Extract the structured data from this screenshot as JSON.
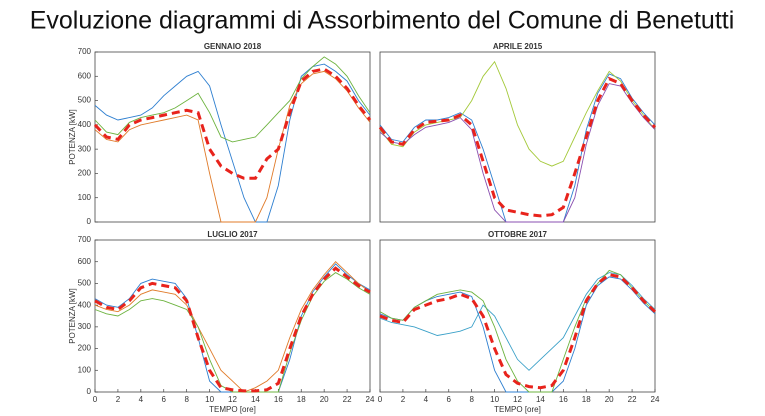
{
  "title": "Evoluzione diagrammi di Assorbimento del Comune di Benetutti",
  "chart_data": [
    {
      "type": "line",
      "title": "GENNAIO 2018",
      "ylabel": "POTENZA [kW]",
      "x": [
        0,
        1,
        2,
        3,
        4,
        5,
        6,
        7,
        8,
        9,
        10,
        11,
        12,
        13,
        14,
        15,
        16,
        17,
        18,
        19,
        20,
        21,
        22,
        23,
        24
      ],
      "xlim": [
        0,
        24
      ],
      "ylim": [
        0,
        700
      ],
      "yticks": [
        0,
        100,
        200,
        300,
        400,
        500,
        600,
        700
      ],
      "series": [
        {
          "color": "#2e7fd0",
          "values": [
            480,
            440,
            420,
            430,
            440,
            470,
            520,
            560,
            600,
            620,
            560,
            400,
            250,
            100,
            0,
            0,
            150,
            420,
            600,
            640,
            650,
            620,
            580,
            500,
            440
          ]
        },
        {
          "color": "#e07b2a",
          "values": [
            380,
            340,
            330,
            380,
            400,
            410,
            420,
            430,
            440,
            420,
            200,
            0,
            0,
            0,
            0,
            100,
            300,
            480,
            570,
            610,
            620,
            590,
            540,
            470,
            410
          ]
        },
        {
          "color": "#6db33f",
          "values": [
            420,
            370,
            360,
            410,
            430,
            440,
            450,
            470,
            500,
            530,
            450,
            350,
            330,
            340,
            350,
            400,
            450,
            500,
            590,
            640,
            680,
            650,
            600,
            520,
            450
          ]
        },
        {
          "color": "#e8231c",
          "dashed": true,
          "values": [
            400,
            350,
            340,
            400,
            420,
            430,
            440,
            450,
            460,
            450,
            300,
            230,
            200,
            180,
            180,
            260,
            300,
            450,
            580,
            620,
            630,
            600,
            550,
            480,
            420
          ]
        }
      ]
    },
    {
      "type": "line",
      "title": "APRILE 2015",
      "x": [
        0,
        1,
        2,
        3,
        4,
        5,
        6,
        7,
        8,
        9,
        10,
        11,
        12,
        13,
        14,
        15,
        16,
        17,
        18,
        19,
        20,
        21,
        22,
        23,
        24
      ],
      "xlim": [
        0,
        24
      ],
      "ylim": [
        0,
        700
      ],
      "series": [
        {
          "color": "#2e7fd0",
          "values": [
            400,
            340,
            330,
            390,
            420,
            420,
            430,
            450,
            420,
            300,
            150,
            0,
            0,
            0,
            0,
            0,
            0,
            150,
            380,
            530,
            610,
            590,
            510,
            450,
            400
          ]
        },
        {
          "color": "#a4c93a",
          "values": [
            380,
            320,
            310,
            370,
            400,
            410,
            420,
            430,
            500,
            600,
            660,
            550,
            400,
            300,
            250,
            230,
            250,
            350,
            450,
            540,
            620,
            580,
            500,
            440,
            380
          ]
        },
        {
          "color": "#8a4fb0",
          "values": [
            370,
            330,
            320,
            360,
            390,
            400,
            410,
            430,
            380,
            200,
            50,
            0,
            0,
            0,
            0,
            0,
            0,
            100,
            320,
            480,
            570,
            560,
            490,
            430,
            380
          ]
        },
        {
          "color": "#e8231c",
          "dashed": true,
          "values": [
            390,
            330,
            320,
            380,
            410,
            415,
            420,
            440,
            400,
            250,
            100,
            50,
            40,
            30,
            25,
            30,
            60,
            200,
            350,
            500,
            590,
            570,
            500,
            440,
            390
          ]
        }
      ]
    },
    {
      "type": "line",
      "title": "LUGLIO 2017",
      "ylabel": "POTENZA [kW]",
      "xlabel": "TEMPO [ore]",
      "x": [
        0,
        1,
        2,
        3,
        4,
        5,
        6,
        7,
        8,
        9,
        10,
        11,
        12,
        13,
        14,
        15,
        16,
        17,
        18,
        19,
        20,
        21,
        22,
        23,
        24
      ],
      "xlim": [
        0,
        24
      ],
      "xticks": [
        0,
        2,
        4,
        6,
        8,
        10,
        12,
        14,
        16,
        18,
        20,
        22,
        24
      ],
      "ylim": [
        0,
        700
      ],
      "yticks": [
        0,
        100,
        200,
        300,
        400,
        500,
        600,
        700
      ],
      "series": [
        {
          "color": "#2e7fd0",
          "values": [
            430,
            400,
            390,
            430,
            500,
            520,
            510,
            500,
            430,
            250,
            50,
            0,
            0,
            0,
            0,
            0,
            0,
            150,
            350,
            460,
            530,
            590,
            540,
            500,
            470
          ]
        },
        {
          "color": "#e07b2a",
          "values": [
            400,
            380,
            370,
            400,
            450,
            470,
            460,
            450,
            400,
            300,
            200,
            100,
            50,
            0,
            20,
            50,
            100,
            250,
            380,
            470,
            540,
            600,
            550,
            500,
            460
          ]
        },
        {
          "color": "#6db33f",
          "values": [
            380,
            360,
            350,
            380,
            420,
            430,
            420,
            400,
            380,
            300,
            150,
            30,
            0,
            0,
            0,
            0,
            0,
            180,
            330,
            440,
            510,
            550,
            520,
            480,
            450
          ]
        },
        {
          "color": "#e8231c",
          "dashed": true,
          "values": [
            420,
            390,
            380,
            420,
            480,
            500,
            490,
            480,
            420,
            250,
            100,
            20,
            10,
            5,
            5,
            10,
            40,
            200,
            350,
            450,
            520,
            570,
            530,
            490,
            460
          ]
        }
      ]
    },
    {
      "type": "line",
      "title": "OTTOBRE 2017",
      "xlabel": "TEMPO [ore]",
      "x": [
        0,
        1,
        2,
        3,
        4,
        5,
        6,
        7,
        8,
        9,
        10,
        11,
        12,
        13,
        14,
        15,
        16,
        17,
        18,
        19,
        20,
        21,
        22,
        23,
        24
      ],
      "xlim": [
        0,
        24
      ],
      "xticks": [
        0,
        2,
        4,
        6,
        8,
        10,
        12,
        14,
        16,
        18,
        20,
        22,
        24
      ],
      "ylim": [
        0,
        700
      ],
      "series": [
        {
          "color": "#2e7fd0",
          "values": [
            360,
            340,
            330,
            390,
            420,
            440,
            450,
            460,
            440,
            300,
            100,
            0,
            0,
            0,
            0,
            0,
            50,
            200,
            400,
            490,
            530,
            520,
            470,
            410,
            360
          ]
        },
        {
          "color": "#3aa0c8",
          "values": [
            340,
            320,
            310,
            300,
            280,
            260,
            270,
            280,
            300,
            400,
            350,
            250,
            150,
            100,
            150,
            200,
            250,
            350,
            450,
            520,
            550,
            540,
            490,
            430,
            380
          ]
        },
        {
          "color": "#6db33f",
          "values": [
            370,
            340,
            330,
            390,
            420,
            450,
            460,
            470,
            460,
            420,
            300,
            150,
            50,
            0,
            0,
            0,
            150,
            300,
            430,
            500,
            560,
            540,
            480,
            420,
            370
          ]
        },
        {
          "color": "#e8231c",
          "dashed": true,
          "values": [
            350,
            330,
            320,
            380,
            400,
            420,
            430,
            450,
            430,
            350,
            200,
            80,
            40,
            25,
            20,
            30,
            100,
            250,
            420,
            500,
            540,
            530,
            480,
            420,
            370
          ]
        }
      ]
    }
  ]
}
